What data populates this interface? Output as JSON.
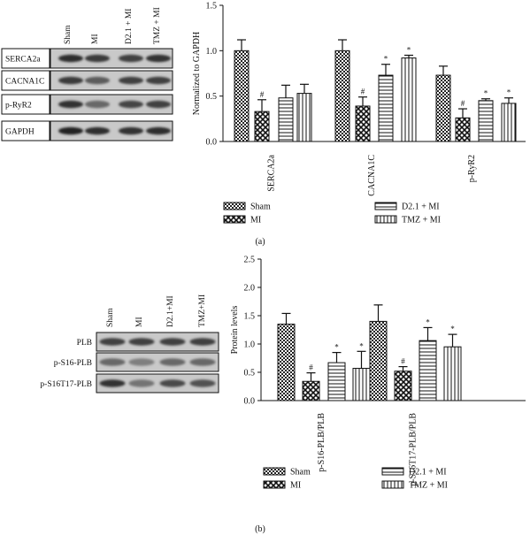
{
  "chart_data": [
    {
      "type": "bar",
      "panel_label": "(a)",
      "ylabel": "Normalized to GAPDH",
      "ylim": [
        0,
        1.5
      ],
      "yticks": [
        "0.0",
        "0.5",
        "1.0",
        "1.5"
      ],
      "categories": [
        "SERCA2a",
        "CACNA1C",
        "p-RyR2"
      ],
      "series": [
        {
          "name": "Sham",
          "values": [
            1.0,
            1.0,
            0.73
          ],
          "errors": [
            0.12,
            0.12,
            0.1
          ],
          "marks": [
            "",
            "",
            ""
          ],
          "pattern": "sham"
        },
        {
          "name": "MI",
          "values": [
            0.33,
            0.39,
            0.26
          ],
          "errors": [
            0.13,
            0.1,
            0.1
          ],
          "marks": [
            "#",
            "#",
            "#"
          ],
          "pattern": "mi"
        },
        {
          "name": "D2.1 + MI",
          "values": [
            0.48,
            0.73,
            0.45
          ],
          "errors": [
            0.14,
            0.12,
            0.02
          ],
          "marks": [
            "",
            "*",
            "*"
          ],
          "pattern": "d21"
        },
        {
          "name": "TMZ + MI",
          "values": [
            0.53,
            0.92,
            0.42
          ],
          "errors": [
            0.1,
            0.03,
            0.06
          ],
          "marks": [
            "",
            "*",
            "*"
          ],
          "pattern": "tmz"
        }
      ],
      "blot": {
        "lanes": [
          "Sham",
          "MI",
          "D2.1 + MI",
          "TMZ + MI"
        ],
        "rows": [
          "SERCA2a",
          "CACNA1C",
          "p-RyR2",
          "GAPDH"
        ]
      }
    },
    {
      "type": "bar",
      "panel_label": "(b)",
      "ylabel": "Protein levels",
      "ylim": [
        0,
        2.5
      ],
      "yticks": [
        "0.0",
        "0.5",
        "1.0",
        "1.5",
        "2.0",
        "2.5"
      ],
      "categories": [
        "p-S16-PLB/PLB",
        "p-S16T17-PLB/PLB"
      ],
      "series": [
        {
          "name": "Sham",
          "values": [
            1.35,
            1.4
          ],
          "errors": [
            0.19,
            0.29
          ],
          "marks": [
            "",
            ""
          ],
          "pattern": "sham"
        },
        {
          "name": "MI",
          "values": [
            0.34,
            0.52
          ],
          "errors": [
            0.15,
            0.08
          ],
          "marks": [
            "#",
            "#"
          ],
          "pattern": "mi"
        },
        {
          "name": "D2.1 + MI",
          "values": [
            0.67,
            1.06
          ],
          "errors": [
            0.18,
            0.23
          ],
          "marks": [
            "*",
            "*"
          ],
          "pattern": "d21"
        },
        {
          "name": "TMZ + MI",
          "values": [
            0.57,
            0.95
          ],
          "errors": [
            0.3,
            0.22
          ],
          "marks": [
            "*",
            "*"
          ],
          "pattern": "tmz"
        }
      ],
      "blot": {
        "lanes": [
          "Sham",
          "MI",
          "D2.1+MI",
          "TMZ+MI"
        ],
        "rows": [
          "PLB",
          "p-S16-PLB",
          "p-S16T17-PLB"
        ]
      }
    }
  ]
}
